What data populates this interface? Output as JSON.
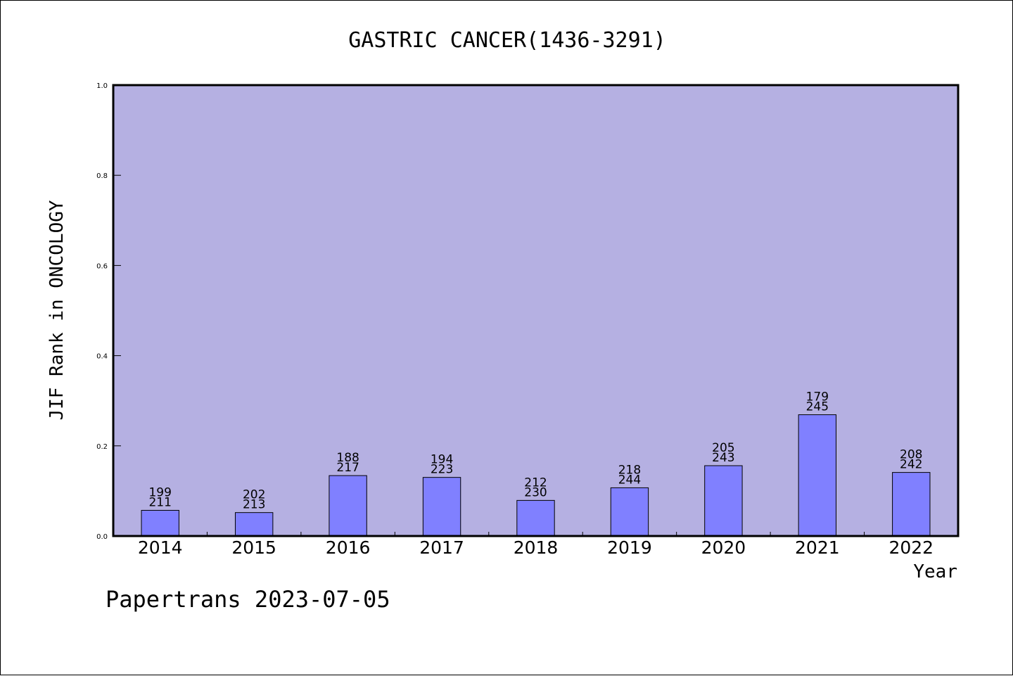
{
  "chart_data": {
    "type": "bar",
    "title": "GASTRIC CANCER(1436-3291)",
    "ylabel": "JIF Rank in ONCOLOGY",
    "xlabel": "Year",
    "ylim": [
      0,
      1.0
    ],
    "yticks": [
      "0.0",
      "0.2",
      "0.4",
      "0.6",
      "0.8",
      "1.0"
    ],
    "categories": [
      "2014",
      "2015",
      "2016",
      "2017",
      "2018",
      "2019",
      "2020",
      "2021",
      "2022"
    ],
    "values": [
      0.057,
      0.052,
      0.134,
      0.13,
      0.079,
      0.107,
      0.156,
      0.269,
      0.141
    ],
    "labels_top": [
      "199",
      "202",
      "188",
      "194",
      "212",
      "218",
      "205",
      "179",
      "208"
    ],
    "labels_bottom": [
      "211",
      "213",
      "217",
      "223",
      "230",
      "244",
      "243",
      "245",
      "242"
    ],
    "grid": false,
    "colors": {
      "plot_bg": "#b5b0e2",
      "bar": "#8080ff",
      "bar_edge": "#000000"
    }
  },
  "footer": "Papertrans 2023-07-05"
}
